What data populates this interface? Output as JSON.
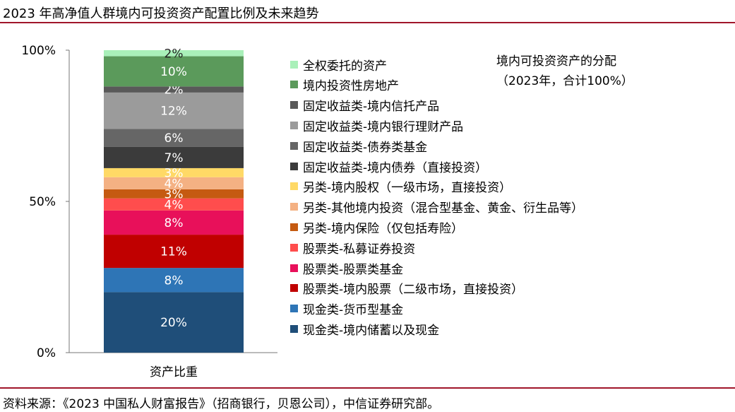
{
  "title": "2023 年高净值人群境内可投资资产配置比例及未来趋势",
  "source_note": "资料来源：《2023 中国私人财富报告》（招商银行，贝恩公司），中信证券研究部。",
  "annotation": "境内可投资资产的分配（2023年，合计100%）",
  "colors": {
    "rule": "#a0162b",
    "axis": "#777777",
    "label_light": "#ffffff",
    "label_dark": "#222222"
  },
  "chart_data": {
    "type": "bar",
    "stacked": true,
    "categories": [
      "资产比重"
    ],
    "xlabel": "",
    "ylabel": "",
    "ylim": [
      0,
      100
    ],
    "yticks": [
      "0%",
      "50%",
      "100%"
    ],
    "yticks_values": [
      0,
      50,
      100
    ],
    "legend_position": "right",
    "series": [
      {
        "name": "现金类-境内储蓄以及现金",
        "values": [
          20
        ],
        "label": "20%",
        "color": "#1f4e79",
        "label_color": "light"
      },
      {
        "name": "现金类-货币型基金",
        "values": [
          8
        ],
        "label": "8%",
        "color": "#2e75b6",
        "label_color": "light"
      },
      {
        "name": "股票类-境内股票（二级市场，直接投资）",
        "values": [
          11
        ],
        "label": "11%",
        "color": "#c00000",
        "label_color": "light"
      },
      {
        "name": "股票类-股票类基金",
        "values": [
          8
        ],
        "label": "8%",
        "color": "#e8105a",
        "label_color": "light"
      },
      {
        "name": "股票类-私募证券投资",
        "values": [
          4
        ],
        "label": "4%",
        "color": "#ff4d4d",
        "label_color": "light"
      },
      {
        "name": "另类-境内保险（仅包括寿险）",
        "values": [
          3
        ],
        "label": "3%",
        "color": "#c55a11",
        "label_color": "light"
      },
      {
        "name": "另类-其他境内投资（混合型基金、黄金、衍生品等）",
        "values": [
          4
        ],
        "label": "4%",
        "color": "#f4b183",
        "label_color": "light"
      },
      {
        "name": "另类-境内股权（一级市场，直接投资）",
        "values": [
          3
        ],
        "label": "3%",
        "color": "#ffd966",
        "label_color": "light"
      },
      {
        "name": "固定收益类-境内债券（直接投资）",
        "values": [
          7
        ],
        "label": "7%",
        "color": "#3b3b3b",
        "label_color": "light"
      },
      {
        "name": "固定收益类-债券类基金",
        "values": [
          6
        ],
        "label": "6%",
        "color": "#666666",
        "label_color": "light"
      },
      {
        "name": "固定收益类-境内银行理财产品",
        "values": [
          12
        ],
        "label": "12%",
        "color": "#9b9b9b",
        "label_color": "light"
      },
      {
        "name": "固定收益类-境内信托产品",
        "values": [
          2
        ],
        "label": "2%",
        "color": "#595959",
        "label_color": "light"
      },
      {
        "name": "境内投资性房地产",
        "values": [
          10
        ],
        "label": "10%",
        "color": "#5b9a5b",
        "label_color": "light"
      },
      {
        "name": "全权委托的资产",
        "values": [
          2
        ],
        "label": "2%",
        "color": "#a9f0b9",
        "label_color": "dark"
      }
    ]
  }
}
